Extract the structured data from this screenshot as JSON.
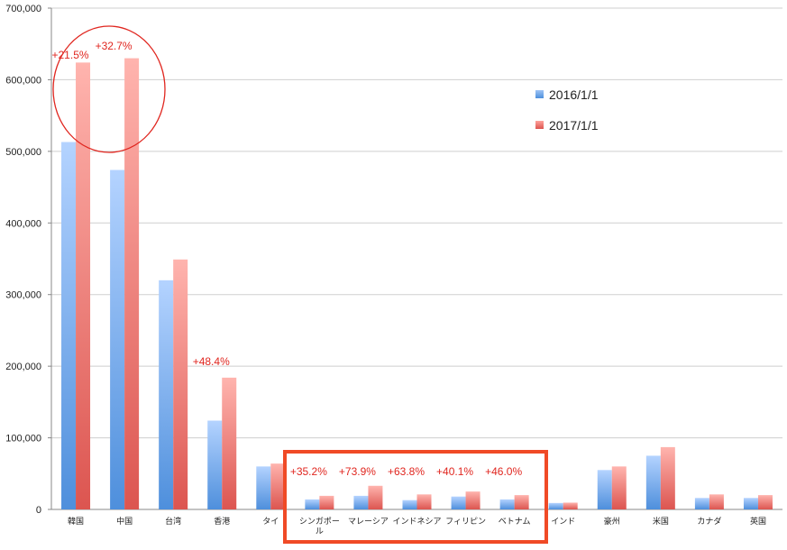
{
  "colors": {
    "series_2016": "#6fa6e8",
    "series_2017": "#f08a84",
    "annotation": "#e0261f",
    "grid": "#cfcfcf"
  },
  "chart_data": {
    "type": "bar",
    "title": "",
    "xlabel": "",
    "ylabel": "",
    "ylim": [
      0,
      700000
    ],
    "yticks": [
      "0",
      "100,000",
      "200,000",
      "300,000",
      "400,000",
      "500,000",
      "600,000",
      "700,000"
    ],
    "grid": true,
    "legend_position": "top-right",
    "categories": [
      "韓国",
      "中国",
      "台湾",
      "香港",
      "タイ",
      "シンガポール",
      "マレーシア",
      "インドネシア",
      "フィリピン",
      "ベトナム",
      "インド",
      "豪州",
      "米国",
      "カナダ",
      "英国"
    ],
    "category_labels": [
      [
        "韓国"
      ],
      [
        "中国"
      ],
      [
        "台湾"
      ],
      [
        "香港"
      ],
      [
        "タイ"
      ],
      [
        "シンガポー",
        "ル"
      ],
      [
        "マレーシア"
      ],
      [
        "インドネシア"
      ],
      [
        "フィリピン"
      ],
      [
        "ベトナム"
      ],
      [
        "インド"
      ],
      [
        "豪州"
      ],
      [
        "米国"
      ],
      [
        "カナダ"
      ],
      [
        "英国"
      ]
    ],
    "series": [
      {
        "name": "2016/1/1",
        "values": [
          513000,
          474000,
          320000,
          124000,
          60000,
          14000,
          19000,
          13000,
          18000,
          14000,
          9000,
          55000,
          75000,
          16000,
          16000
        ]
      },
      {
        "name": "2017/1/1",
        "values": [
          624000,
          630000,
          349000,
          184000,
          64000,
          19000,
          33000,
          21000,
          25000,
          20000,
          9500,
          60000,
          87000,
          21000,
          20000
        ]
      }
    ],
    "annotations": [
      {
        "text": "+21.5%",
        "category": "韓国"
      },
      {
        "text": "+32.7%",
        "category": "中国"
      },
      {
        "text": "+48.4%",
        "category": "香港"
      },
      {
        "text": "+35.2%",
        "category": "シンガポール"
      },
      {
        "text": "+73.9%",
        "category": "マレーシア"
      },
      {
        "text": "+63.8%",
        "category": "インドネシア"
      },
      {
        "text": "+40.1%",
        "category": "フィリピン"
      },
      {
        "text": "+46.0%",
        "category": "ベトナム"
      }
    ]
  }
}
